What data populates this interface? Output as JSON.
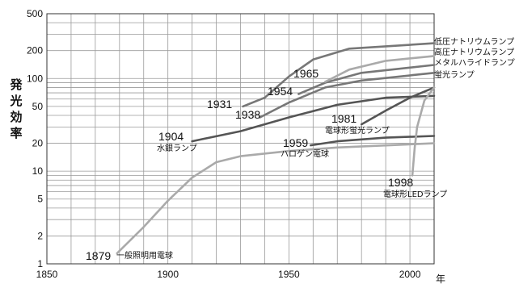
{
  "chart_data": {
    "type": "line",
    "ylabel": "発光効率",
    "xlabel": "年",
    "xlim": [
      1850,
      2010
    ],
    "ylim": [
      1,
      500
    ],
    "yscale": "log",
    "x_ticks": [
      1850,
      1900,
      1950,
      2000
    ],
    "y_ticks": [
      1,
      2,
      5,
      10,
      20,
      50,
      100,
      200,
      500
    ],
    "grid": true,
    "series": [
      {
        "name": "一般照明用電球",
        "label_year": "1879",
        "color": "#aaaaaa",
        "points": [
          [
            1879,
            1.3
          ],
          [
            1890,
            2.5
          ],
          [
            1900,
            4.8
          ],
          [
            1910,
            8.5
          ],
          [
            1920,
            12.5
          ],
          [
            1930,
            14.5
          ],
          [
            1950,
            16.5
          ],
          [
            1970,
            18
          ],
          [
            2010,
            20
          ]
        ]
      },
      {
        "name": "ハロゲン電球",
        "label_year": "1959",
        "color": "#555555",
        "points": [
          [
            1959,
            19
          ],
          [
            1970,
            21
          ],
          [
            1990,
            23
          ],
          [
            2010,
            24
          ]
        ]
      },
      {
        "name": "水銀ランプ",
        "label_year": "1904",
        "color": "#555555",
        "points": [
          [
            1910,
            21
          ],
          [
            1930,
            27
          ],
          [
            1950,
            38
          ],
          [
            1970,
            52
          ],
          [
            1990,
            62
          ],
          [
            2010,
            65
          ]
        ]
      },
      {
        "name": "電球形蛍光ランプ",
        "label_year": "1981",
        "color": "#555555",
        "points": [
          [
            1980,
            32
          ],
          [
            1990,
            45
          ],
          [
            2000,
            62
          ],
          [
            2010,
            80
          ]
        ]
      },
      {
        "name": "電球形LEDランプ",
        "label_year": "1998",
        "color": "#aaaaaa",
        "points": [
          [
            2001,
            9
          ],
          [
            2002,
            18
          ],
          [
            2003,
            30
          ],
          [
            2006,
            58
          ],
          [
            2010,
            80
          ]
        ]
      },
      {
        "name": "蛍光ランプ",
        "label_year": "1938",
        "color": "#777777",
        "points": [
          [
            1938,
            38
          ],
          [
            1950,
            55
          ],
          [
            1965,
            80
          ],
          [
            1980,
            95
          ],
          [
            2010,
            115
          ]
        ]
      },
      {
        "name": "メタルハライドランプ",
        "label_year": "1954",
        "color": "#777777",
        "points": [
          [
            1954,
            68
          ],
          [
            1965,
            90
          ],
          [
            1980,
            115
          ],
          [
            2010,
            140
          ]
        ]
      },
      {
        "name": "高圧ナトリウムランプ",
        "label_year": "1965",
        "color": "#aaaaaa",
        "points": [
          [
            1965,
            92
          ],
          [
            1975,
            125
          ],
          [
            1990,
            155
          ],
          [
            2010,
            175
          ]
        ]
      },
      {
        "name": "低圧ナトリウムランプ",
        "label_year": "1931",
        "color": "#777777",
        "points": [
          [
            1931,
            50
          ],
          [
            1940,
            62
          ],
          [
            1950,
            105
          ],
          [
            1960,
            160
          ],
          [
            1975,
            210
          ],
          [
            2010,
            240
          ]
        ]
      }
    ]
  }
}
